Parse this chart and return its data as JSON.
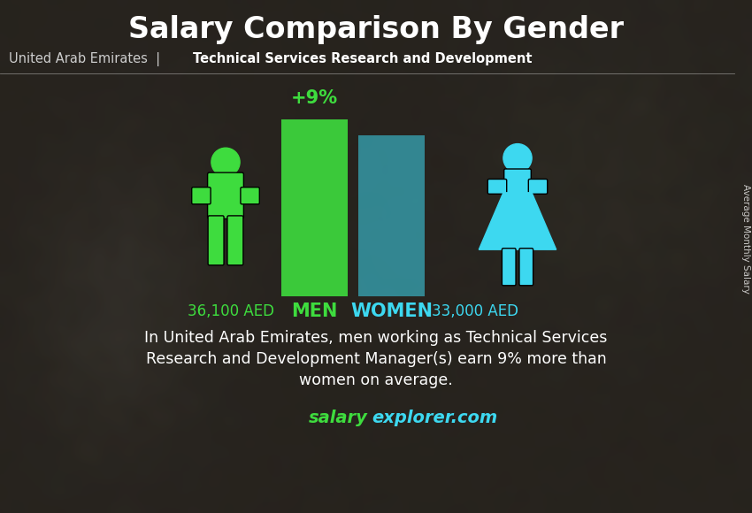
{
  "title": "Salary Comparison By Gender",
  "subtitle_left": "United Arab Emirates",
  "subtitle_sep": "  |  ",
  "subtitle_right": "Technical Services Research and Development",
  "man_salary_label": "36,100 AED",
  "woman_salary_label": "33,000 AED",
  "percentage_diff": "+9%",
  "man_bar_color": "#3edc3e",
  "woman_bar_color": "#3dd8f0",
  "man_icon_color": "#3edc3e",
  "woman_icon_color": "#3dd8f0",
  "title_color": "#ffffff",
  "label_color_man": "#3edc3e",
  "label_color_woman": "#3dd8f0",
  "desc_line1": "In United Arab Emirates, men working as Technical Services",
  "desc_line2": "Research and Development Manager(s) earn 9% more than",
  "desc_line3": "women on average.",
  "website_salary": "salary",
  "website_explorer": "explorer.com",
  "website_color_salary": "#3edc3e",
  "website_color_explorer": "#3dd8f0",
  "ylabel_text": "Average Monthly Salary",
  "men_label": "MEN",
  "women_label": "WOMEN",
  "bg_colors": [
    "#3a3a2a",
    "#4a4a3a",
    "#2a2a1a",
    "#5a5040",
    "#3a4030",
    "#404535"
  ],
  "figsize": [
    8.5,
    5.8
  ],
  "dpi": 100
}
